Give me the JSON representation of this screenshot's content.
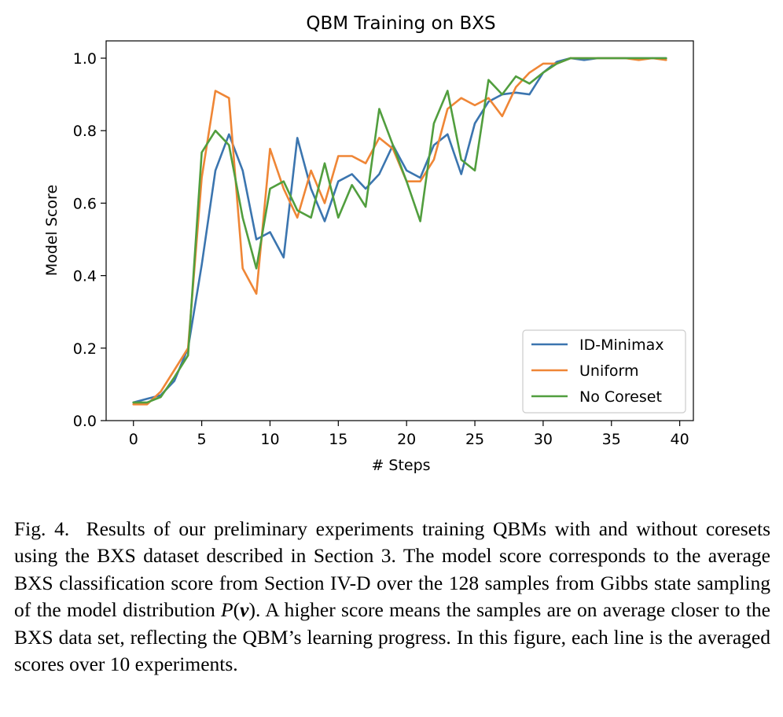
{
  "chart_data": {
    "type": "line",
    "title": "QBM Training on BXS",
    "xlabel": "# Steps",
    "ylabel": "Model Score",
    "xlim": [
      -2,
      41
    ],
    "ylim": [
      0,
      1.0
    ],
    "xticks": [
      "0",
      "5",
      "10",
      "15",
      "20",
      "25",
      "30",
      "35",
      "40"
    ],
    "yticks": [
      "0.0",
      "0.2",
      "0.4",
      "0.6",
      "0.8",
      "1.0"
    ],
    "legend_position": "lower-right",
    "grid": false,
    "x": [
      0,
      1,
      2,
      3,
      4,
      5,
      6,
      7,
      8,
      9,
      10,
      11,
      12,
      13,
      14,
      15,
      16,
      17,
      18,
      19,
      20,
      21,
      22,
      23,
      24,
      25,
      26,
      27,
      28,
      29,
      30,
      31,
      32,
      33,
      34,
      35,
      36,
      37,
      38,
      39
    ],
    "series": [
      {
        "name": "ID-Minimax",
        "color": "#3b75af",
        "values": [
          0.05,
          0.06,
          0.07,
          0.11,
          0.2,
          0.43,
          0.69,
          0.79,
          0.69,
          0.5,
          0.52,
          0.45,
          0.78,
          0.64,
          0.55,
          0.66,
          0.68,
          0.64,
          0.68,
          0.76,
          0.69,
          0.67,
          0.76,
          0.79,
          0.68,
          0.82,
          0.88,
          0.9,
          0.905,
          0.9,
          0.96,
          0.99,
          1.0,
          0.995,
          1.0,
          1.0,
          1.0,
          1.0,
          1.0,
          1.0
        ]
      },
      {
        "name": "Uniform",
        "color": "#ef8636",
        "values": [
          0.045,
          0.045,
          0.08,
          0.14,
          0.2,
          0.67,
          0.91,
          0.89,
          0.42,
          0.35,
          0.75,
          0.64,
          0.56,
          0.69,
          0.6,
          0.73,
          0.73,
          0.71,
          0.78,
          0.75,
          0.66,
          0.66,
          0.72,
          0.86,
          0.89,
          0.87,
          0.89,
          0.84,
          0.92,
          0.96,
          0.985,
          0.985,
          1.0,
          1.0,
          1.0,
          1.0,
          1.0,
          0.995,
          1.0,
          0.995
        ]
      },
      {
        "name": "No Coreset",
        "color": "#519e3e",
        "values": [
          0.05,
          0.05,
          0.065,
          0.12,
          0.18,
          0.74,
          0.8,
          0.76,
          0.56,
          0.42,
          0.64,
          0.66,
          0.58,
          0.56,
          0.71,
          0.56,
          0.65,
          0.59,
          0.86,
          0.76,
          0.66,
          0.55,
          0.82,
          0.91,
          0.72,
          0.69,
          0.94,
          0.9,
          0.95,
          0.93,
          0.96,
          0.985,
          1.0,
          1.0,
          1.0,
          1.0,
          1.0,
          1.0,
          1.0,
          1.0
        ]
      }
    ]
  },
  "caption": {
    "label": "Fig. 4.",
    "text_before_math": "Results of our preliminary experiments training QBMs with and without coresets using the BXS dataset described in Section 3. The model score corresponds to the average BXS classification score from Section IV-D over the 128 samples from Gibbs state sampling of the model distribution",
    "math_P": "P",
    "math_open": "(",
    "math_v": "v",
    "math_close": ")",
    "text_after_math": ". A higher score means the samples are on average closer to the BXS data set, reflecting the QBM’s learning progress. In this figure, each line is the averaged scores over 10 experiments."
  }
}
